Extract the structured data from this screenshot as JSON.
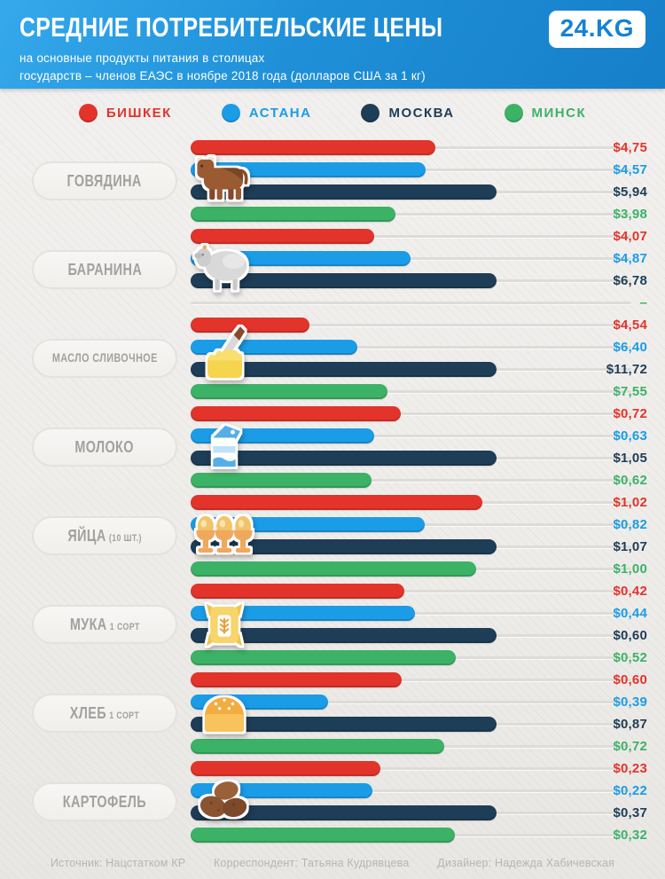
{
  "header": {
    "title": "СРЕДНИЕ ПОТРЕБИТЕЛЬСКИЕ ЦЕНЫ",
    "subtitle_line1": "на основные продукты питания в столицах",
    "subtitle_line2": "государств – членов ЕАЭС в ноябре 2018 года (долларов США за 1 кг)",
    "logo": "24.KG"
  },
  "legend": [
    {
      "key": "bishkek",
      "label": "БИШКЕК",
      "color": "#e2342b"
    },
    {
      "key": "astana",
      "label": "АСТАНА",
      "color": "#1b9ce6"
    },
    {
      "key": "moscow",
      "label": "МОСКВА",
      "color": "#1e3d56"
    },
    {
      "key": "minsk",
      "label": "МИНСК",
      "color": "#3cb266"
    }
  ],
  "chart_data": {
    "type": "bar",
    "orientation": "horizontal",
    "unit": "долларов США за 1 кг",
    "series_names": [
      "Бишкек",
      "Астана",
      "Москва",
      "Минск"
    ],
    "series_colors": [
      "#e2342b",
      "#1b9ce6",
      "#1e3d56",
      "#3cb266"
    ],
    "products": [
      {
        "label": "ГОВЯДИНА",
        "sublabel": "",
        "icon": "cow-icon",
        "values": [
          4.75,
          4.57,
          5.94,
          3.98
        ],
        "display": [
          "$4,75",
          "$4,57",
          "$5,94",
          "$3,98"
        ]
      },
      {
        "label": "БАРАНИНА",
        "sublabel": "",
        "icon": "sheep-icon",
        "values": [
          4.07,
          4.87,
          6.78,
          null
        ],
        "display": [
          "$4,07",
          "$4,87",
          "$6,78",
          "–"
        ]
      },
      {
        "label": "МАСЛО СЛИВОЧНОЕ",
        "sublabel": "",
        "icon": "butter-icon",
        "values": [
          4.54,
          6.4,
          11.72,
          7.55
        ],
        "display": [
          "$4,54",
          "$6,40",
          "$11,72",
          "$7,55"
        ]
      },
      {
        "label": "МОЛОКО",
        "sublabel": "",
        "icon": "milk-icon",
        "values": [
          0.72,
          0.63,
          1.05,
          0.62
        ],
        "display": [
          "$0,72",
          "$0,63",
          "$1,05",
          "$0,62"
        ]
      },
      {
        "label": "ЯЙЦА",
        "sublabel": "(10 ШТ.)",
        "icon": "eggs-icon",
        "values": [
          1.02,
          0.82,
          1.07,
          1.0
        ],
        "display": [
          "$1,02",
          "$0,82",
          "$1,07",
          "$1,00"
        ]
      },
      {
        "label": "МУКА",
        "sublabel": "1 СОРТ",
        "icon": "flour-icon",
        "values": [
          0.42,
          0.44,
          0.6,
          0.52
        ],
        "display": [
          "$0,42",
          "$0,44",
          "$0,60",
          "$0,52"
        ]
      },
      {
        "label": "ХЛЕБ",
        "sublabel": "1 СОРТ",
        "icon": "bread-icon",
        "values": [
          0.6,
          0.39,
          0.87,
          0.72
        ],
        "display": [
          "$0,60",
          "$0,39",
          "$0,87",
          "$0,72"
        ]
      },
      {
        "label": "КАРТОФЕЛЬ",
        "sublabel": "",
        "icon": "potato-icon",
        "values": [
          0.23,
          0.22,
          0.37,
          0.32
        ],
        "display": [
          "$0,23",
          "$0,22",
          "$0,37",
          "$0,32"
        ]
      }
    ]
  },
  "footer": {
    "source": "Источник: Нацстатком КР",
    "correspondent": "Корреспондент: Татьяна Кудрявцева",
    "designer": "Дизайнер: Надежда Хабичевская"
  }
}
